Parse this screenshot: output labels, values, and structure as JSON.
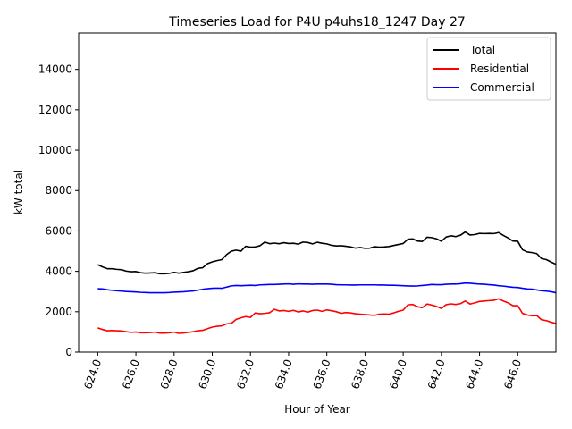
{
  "chart_data": {
    "type": "line",
    "title": "Timeseries Load for P4U p4uhs18_1247  Day 27",
    "xlabel": "Hour of Year",
    "ylabel": "kW total",
    "xlim": [
      623.0,
      648.0
    ],
    "ylim": [
      0,
      15800
    ],
    "xticks": [
      624,
      626,
      628,
      630,
      632,
      634,
      636,
      638,
      640,
      642,
      644,
      646
    ],
    "xtick_labels": [
      "624.0",
      "626.0",
      "628.0",
      "630.0",
      "632.0",
      "634.0",
      "636.0",
      "638.0",
      "640.0",
      "642.0",
      "644.0",
      "646.0"
    ],
    "yticks": [
      0,
      2000,
      4000,
      6000,
      8000,
      10000,
      12000,
      14000
    ],
    "ytick_labels": [
      "0",
      "2000",
      "4000",
      "6000",
      "8000",
      "10000",
      "12000",
      "14000"
    ],
    "grid": false,
    "legend_position": "top-right",
    "x_start": 624.0,
    "x_step": 0.25,
    "series": [
      {
        "name": "Total",
        "color": "#000000",
        "values": [
          4330,
          4220,
          4130,
          4130,
          4100,
          4080,
          4010,
          3980,
          3990,
          3930,
          3910,
          3920,
          3930,
          3880,
          3880,
          3900,
          3950,
          3910,
          3950,
          3980,
          4030,
          4150,
          4180,
          4380,
          4470,
          4530,
          4580,
          4830,
          5000,
          5050,
          5000,
          5240,
          5200,
          5210,
          5270,
          5450,
          5370,
          5400,
          5370,
          5420,
          5380,
          5390,
          5350,
          5450,
          5430,
          5360,
          5440,
          5390,
          5360,
          5290,
          5260,
          5270,
          5240,
          5210,
          5150,
          5180,
          5140,
          5150,
          5220,
          5200,
          5210,
          5230,
          5280,
          5330,
          5380,
          5590,
          5610,
          5500,
          5480,
          5690,
          5670,
          5610,
          5490,
          5700,
          5760,
          5720,
          5790,
          5950,
          5800,
          5820,
          5880,
          5870,
          5880,
          5870,
          5920,
          5780,
          5650,
          5500,
          5490,
          5070,
          4960,
          4930,
          4880,
          4630,
          4580,
          4460,
          4350
        ]
      },
      {
        "name": "Residential",
        "color": "#ff0000",
        "values": [
          1200,
          1120,
          1060,
          1070,
          1060,
          1050,
          1010,
          980,
          1000,
          960,
          960,
          970,
          990,
          940,
          940,
          960,
          990,
          930,
          950,
          980,
          1010,
          1060,
          1080,
          1160,
          1240,
          1280,
          1300,
          1400,
          1420,
          1620,
          1700,
          1760,
          1720,
          1940,
          1900,
          1920,
          1950,
          2120,
          2040,
          2060,
          2020,
          2070,
          1990,
          2040,
          1980,
          2060,
          2080,
          2020,
          2090,
          2050,
          2000,
          1920,
          1960,
          1940,
          1900,
          1880,
          1860,
          1840,
          1820,
          1880,
          1890,
          1880,
          1940,
          2020,
          2080,
          2340,
          2360,
          2250,
          2200,
          2380,
          2330,
          2260,
          2160,
          2350,
          2390,
          2360,
          2400,
          2530,
          2380,
          2440,
          2510,
          2530,
          2550,
          2570,
          2640,
          2530,
          2440,
          2300,
          2300,
          1920,
          1840,
          1800,
          1810,
          1600,
          1560,
          1480,
          1420
        ]
      },
      {
        "name": "Commercial",
        "color": "#0000ff",
        "values": [
          3140,
          3130,
          3090,
          3060,
          3040,
          3020,
          3000,
          2990,
          2980,
          2960,
          2950,
          2940,
          2940,
          2940,
          2940,
          2950,
          2970,
          2980,
          2990,
          3010,
          3030,
          3070,
          3110,
          3140,
          3160,
          3170,
          3160,
          3220,
          3280,
          3300,
          3290,
          3300,
          3310,
          3300,
          3330,
          3340,
          3350,
          3350,
          3360,
          3370,
          3380,
          3360,
          3380,
          3370,
          3370,
          3360,
          3370,
          3370,
          3370,
          3360,
          3340,
          3330,
          3330,
          3320,
          3320,
          3330,
          3330,
          3330,
          3330,
          3320,
          3320,
          3310,
          3310,
          3300,
          3290,
          3280,
          3270,
          3280,
          3300,
          3320,
          3350,
          3340,
          3340,
          3360,
          3370,
          3370,
          3390,
          3420,
          3410,
          3390,
          3370,
          3360,
          3340,
          3320,
          3290,
          3270,
          3240,
          3210,
          3200,
          3160,
          3130,
          3120,
          3080,
          3040,
          3020,
          2990,
          2940
        ]
      }
    ]
  }
}
